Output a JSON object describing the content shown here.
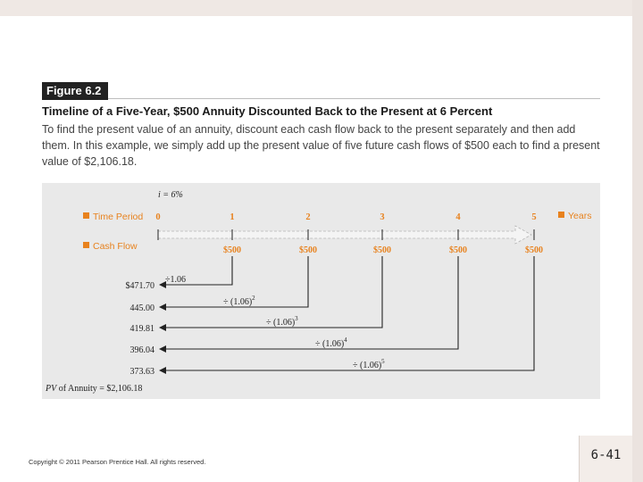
{
  "figure": {
    "label": "Figure 6.2",
    "title": "Timeline of a Five-Year, $500 Annuity Discounted Back to the Present at 6 Percent",
    "caption": "To find the present value of an annuity, discount each cash flow back to the present separately and then add them. In this example, we simply add up the present value of five future cash flows of $500 each to find a present value of $2,106.18."
  },
  "diagram": {
    "rate_label": "i = 6%",
    "time_period_label": "Time Period",
    "years_label": "Years",
    "cash_flow_label": "Cash Flow",
    "periods": [
      "0",
      "1",
      "2",
      "3",
      "4",
      "5"
    ],
    "cash_flows": [
      "$500",
      "$500",
      "$500",
      "$500",
      "$500"
    ],
    "present_values": [
      "$471.70",
      "445.00",
      "419.81",
      "396.04",
      "373.63"
    ],
    "discount_factors": [
      {
        "base": "÷1.06",
        "exponent": ""
      },
      {
        "base": "÷ (1.06)",
        "exponent": "2"
      },
      {
        "base": "÷ (1.06)",
        "exponent": "3"
      },
      {
        "base": "÷ (1.06)",
        "exponent": "4"
      },
      {
        "base": "÷ (1.06)",
        "exponent": "5"
      }
    ],
    "total_pv_prefix": "PV",
    "total_pv_text": " of Annuity = $2,106.18",
    "colors": {
      "accent": "#e8821e",
      "line": "#222222",
      "background": "#e9e9e9"
    }
  },
  "footer": {
    "copyright": "Copyright © 2011 Pearson Prentice Hall. All rights reserved.",
    "slide_number": "6-41"
  }
}
